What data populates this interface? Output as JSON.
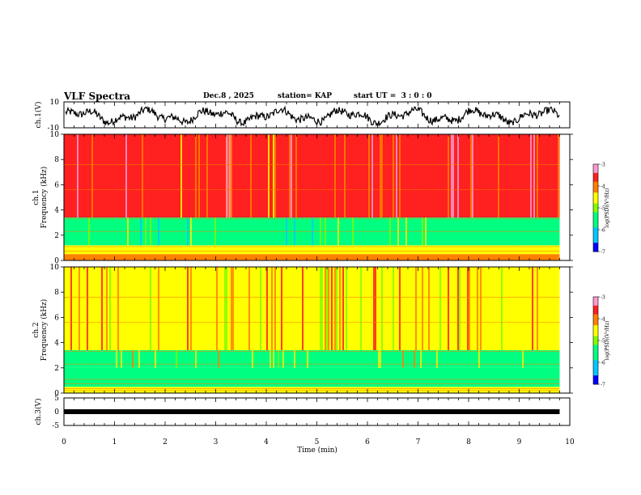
{
  "header": {
    "title": "VLF Spectra",
    "date": "Dec.8 , 2025",
    "station": "station= KAP",
    "start_ut": "start UT =  3 : 0 : 0"
  },
  "chart_data": [
    {
      "type": "line",
      "name": "ch.1 waveform",
      "ylabel": "ch.1(V)",
      "ylim": [
        -10,
        10
      ],
      "yticks": [
        "10",
        "-10"
      ],
      "xlim": [
        0,
        10
      ],
      "x_end": 9.8,
      "description_values": {
        "mean": -1.0,
        "range": [
          -8,
          6
        ]
      }
    },
    {
      "type": "heatmap",
      "name": "ch.1 spectrogram",
      "ylabel_line1": "ch.1",
      "ylabel_line2": "Frequency (kHz)",
      "ylim": [
        0,
        10
      ],
      "yticks": [
        "0",
        "2",
        "4",
        "6",
        "8",
        "10"
      ],
      "xlim": [
        0,
        10
      ],
      "x_end": 9.8,
      "color_scale": {
        "label": "log(PSD)(V²/Hz)",
        "range": [
          -7,
          -3
        ],
        "ticks": [
          "-3",
          "-4",
          "-5",
          "-6",
          "-7"
        ]
      },
      "bands_khz": [
        {
          "from": 0,
          "to": 0.5,
          "level": -4.2
        },
        {
          "from": 0.5,
          "to": 1.2,
          "level": -4.6
        },
        {
          "from": 1.2,
          "to": 3.4,
          "level": -5.6
        },
        {
          "from": 3.4,
          "to": 10,
          "level": -3.7
        }
      ]
    },
    {
      "type": "heatmap",
      "name": "ch.2 spectrogram",
      "ylabel_line1": "ch.2",
      "ylabel_line2": "Frequency (kHz)",
      "ylim": [
        0,
        10
      ],
      "yticks": [
        "0",
        "2",
        "4",
        "6",
        "8",
        "10"
      ],
      "xlim": [
        0,
        10
      ],
      "x_end": 9.8,
      "color_scale": {
        "label": "log(PSD)(V²/Hz)",
        "range": [
          -7,
          -3
        ],
        "ticks": [
          "-3",
          "-4",
          "-5",
          "-6",
          "-7"
        ]
      },
      "bands_khz": [
        {
          "from": 0,
          "to": 0.5,
          "level": -4.5
        },
        {
          "from": 0.5,
          "to": 2.0,
          "level": -5.8
        },
        {
          "from": 2.0,
          "to": 3.4,
          "level": -5.3
        },
        {
          "from": 3.4,
          "to": 10,
          "level": -4.3
        }
      ]
    },
    {
      "type": "line",
      "name": "ch.3 waveform",
      "ylabel": "ch.3(V)",
      "ylim": [
        -5,
        5
      ],
      "yticks": [
        "5",
        "0",
        "-5"
      ],
      "xlim": [
        0,
        10
      ],
      "x_end": 9.8,
      "level": 0
    }
  ],
  "x_axis": {
    "label": "Time (min)",
    "ticks": [
      "0",
      "1",
      "2",
      "3",
      "4",
      "5",
      "6",
      "7",
      "8",
      "9",
      "10"
    ]
  }
}
